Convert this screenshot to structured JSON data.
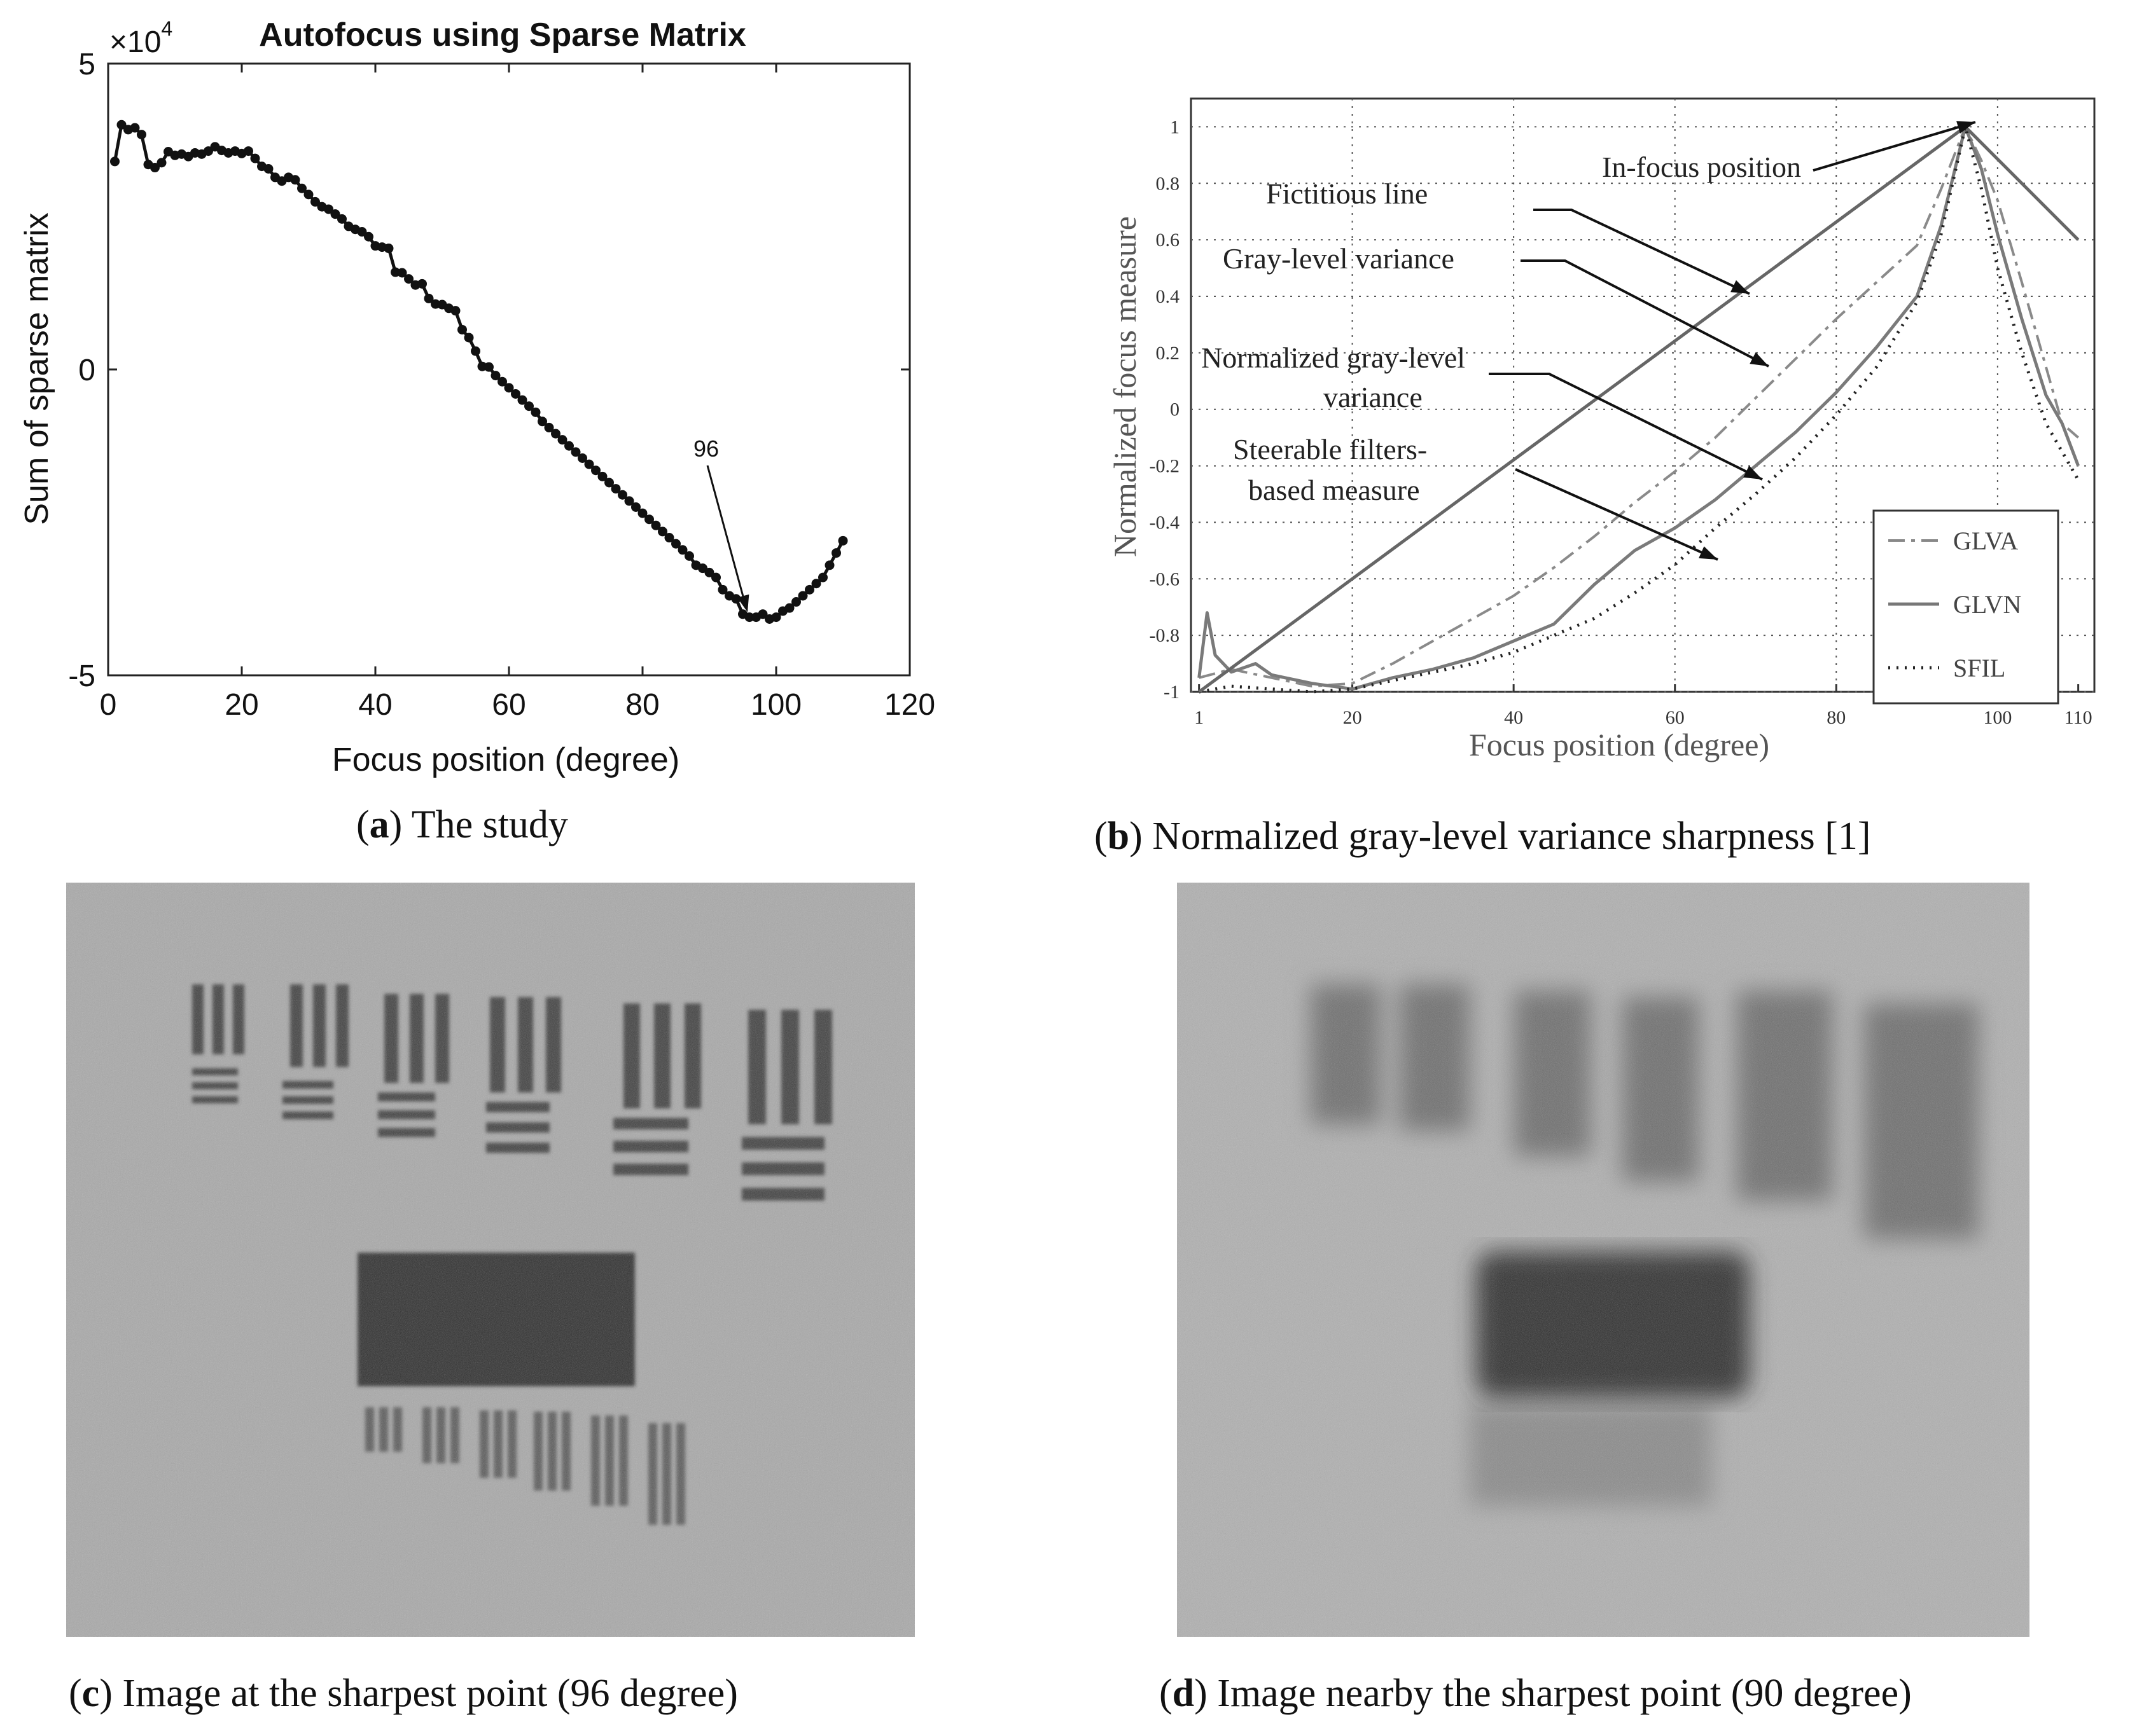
{
  "chart_data": [
    {
      "id": "a",
      "type": "line",
      "title": "Autofocus using Sparse Matrix",
      "xlabel": "Focus position (degree)",
      "ylabel": "Sum of sparse matrix",
      "xlim": [
        0,
        120
      ],
      "ylim": [
        -50000,
        50000
      ],
      "x_ticks": [
        "0",
        "20",
        "40",
        "60",
        "80",
        "100",
        "120"
      ],
      "y_ticks": [
        "-5",
        "0",
        "5"
      ],
      "y_multiplier_base": "×10",
      "y_multiplier_exp": "4",
      "grid": false,
      "annotation": {
        "text": "96",
        "x": 96,
        "y": -40500
      },
      "series": [
        {
          "x": [
            1,
            2,
            3,
            4,
            5,
            6,
            7,
            8,
            9,
            10,
            11,
            12,
            13,
            14,
            15,
            16,
            17,
            18,
            19,
            20,
            21,
            22,
            23,
            24,
            25,
            26,
            27,
            28,
            29,
            30,
            31,
            32,
            33,
            34,
            35,
            36,
            37,
            38,
            39,
            40,
            41,
            42,
            43,
            44,
            45,
            46,
            47,
            48,
            49,
            50,
            51,
            52,
            53,
            54,
            55,
            56,
            57,
            58,
            59,
            60,
            61,
            62,
            63,
            64,
            65,
            66,
            67,
            68,
            69,
            70,
            71,
            72,
            73,
            74,
            75,
            76,
            77,
            78,
            79,
            80,
            81,
            82,
            83,
            84,
            85,
            86,
            87,
            88,
            89,
            90,
            91,
            92,
            93,
            94,
            95,
            96,
            97,
            98,
            99,
            100,
            101,
            102,
            103,
            104,
            105,
            106,
            107,
            108,
            109,
            110
          ],
          "y": [
            34000,
            40000,
            39200,
            39500,
            38400,
            33500,
            33000,
            33800,
            35600,
            35000,
            35200,
            34800,
            35400,
            35200,
            35700,
            36400,
            35800,
            35400,
            35700,
            35300,
            35700,
            34500,
            33200,
            32800,
            31400,
            30800,
            31400,
            31000,
            29600,
            28600,
            27400,
            26600,
            26200,
            25400,
            24600,
            23400,
            22900,
            22500,
            21700,
            20200,
            20000,
            19800,
            15900,
            15800,
            14800,
            13800,
            14000,
            11600,
            10700,
            10600,
            10000,
            9600,
            6500,
            5200,
            3000,
            500,
            400,
            -1000,
            -2000,
            -3000,
            -4000,
            -5000,
            -6000,
            -7000,
            -8500,
            -9500,
            -10500,
            -11500,
            -12500,
            -13500,
            -14500,
            -15500,
            -16500,
            -17500,
            -18500,
            -19500,
            -20500,
            -21500,
            -22500,
            -23500,
            -24500,
            -25500,
            -26500,
            -27500,
            -28500,
            -29500,
            -30500,
            -32000,
            -32500,
            -33200,
            -34000,
            -36000,
            -37000,
            -37500,
            -40000,
            -40500,
            -40500,
            -40000,
            -40800,
            -40500,
            -39500,
            -39000,
            -38000,
            -37000,
            -36000,
            -35000,
            -34000,
            -32000,
            -30000,
            -28000
          ]
        }
      ]
    },
    {
      "id": "b",
      "type": "line",
      "title": "",
      "xlabel": "Focus position (degree)",
      "ylabel": "Normalized focus measure",
      "xlim": [
        0,
        112
      ],
      "ylim": [
        -1,
        1.1
      ],
      "x_ticks": [
        "1",
        "20",
        "40",
        "60",
        "80",
        "100",
        "110"
      ],
      "x_tick_values": [
        1,
        20,
        40,
        60,
        80,
        100,
        110
      ],
      "y_ticks": [
        "-1",
        "-0.8",
        "-0.6",
        "-0.4",
        "-0.2",
        "0",
        "0.2",
        "0.4",
        "0.6",
        "0.8",
        "1"
      ],
      "grid": true,
      "legend": "bottom-right",
      "annotations": [
        "In-focus position",
        "Fictitious line",
        "Gray-level variance",
        "Normalized gray-level",
        "variance",
        "Steerable filters-",
        "based measure"
      ],
      "series": [
        {
          "name": "GLVA",
          "style": "dashdot",
          "x": [
            1,
            5,
            10,
            15,
            20,
            25,
            30,
            35,
            40,
            45,
            50,
            55,
            60,
            65,
            70,
            75,
            80,
            85,
            90,
            93,
            96,
            98,
            100,
            103,
            106,
            108,
            110
          ],
          "y": [
            -0.95,
            -0.92,
            -0.95,
            -0.98,
            -0.97,
            -0.9,
            -0.82,
            -0.74,
            -0.66,
            -0.56,
            -0.45,
            -0.33,
            -0.22,
            -0.1,
            0.04,
            0.18,
            0.32,
            0.45,
            0.58,
            0.78,
            1.0,
            0.88,
            0.74,
            0.45,
            0.15,
            -0.05,
            -0.1
          ]
        },
        {
          "name": "GLVN",
          "style": "solid",
          "x": [
            1,
            2,
            3,
            5,
            8,
            10,
            15,
            20,
            25,
            30,
            35,
            40,
            45,
            50,
            55,
            60,
            65,
            70,
            75,
            80,
            85,
            90,
            93,
            96,
            98,
            100,
            103,
            106,
            108,
            110
          ],
          "y": [
            -0.95,
            -0.72,
            -0.87,
            -0.93,
            -0.9,
            -0.94,
            -0.97,
            -0.99,
            -0.95,
            -0.92,
            -0.88,
            -0.82,
            -0.76,
            -0.62,
            -0.5,
            -0.42,
            -0.32,
            -0.2,
            -0.08,
            0.06,
            0.22,
            0.4,
            0.65,
            1.0,
            0.85,
            0.62,
            0.32,
            0.05,
            -0.05,
            -0.2
          ]
        },
        {
          "name": "SFIL",
          "style": "dotted",
          "x": [
            1,
            5,
            10,
            15,
            20,
            25,
            30,
            35,
            40,
            45,
            50,
            55,
            60,
            65,
            70,
            75,
            80,
            85,
            90,
            93,
            96,
            98,
            100,
            103,
            106,
            108,
            110
          ],
          "y": [
            -1.0,
            -0.98,
            -0.99,
            -1.0,
            -0.99,
            -0.96,
            -0.93,
            -0.9,
            -0.86,
            -0.8,
            -0.74,
            -0.65,
            -0.55,
            -0.42,
            -0.3,
            -0.17,
            -0.02,
            0.15,
            0.38,
            0.62,
            1.0,
            0.78,
            0.5,
            0.2,
            -0.05,
            -0.15,
            -0.25
          ]
        },
        {
          "name": "Fictitious line",
          "style": "solid-dark",
          "show_in_legend": false,
          "x": [
            1,
            96,
            110
          ],
          "y": [
            -1.0,
            1.0,
            0.6
          ]
        }
      ]
    }
  ],
  "captions": {
    "a_letter": "a",
    "a_text": " The study",
    "b_letter": "b",
    "b_text": " Normalized gray-level variance sharpness [1]",
    "c_letter": "c",
    "c_text": " Image at the sharpest point (96 degree)",
    "d_letter": "d",
    "d_text": " Image nearby the sharpest point (90 degree)"
  }
}
